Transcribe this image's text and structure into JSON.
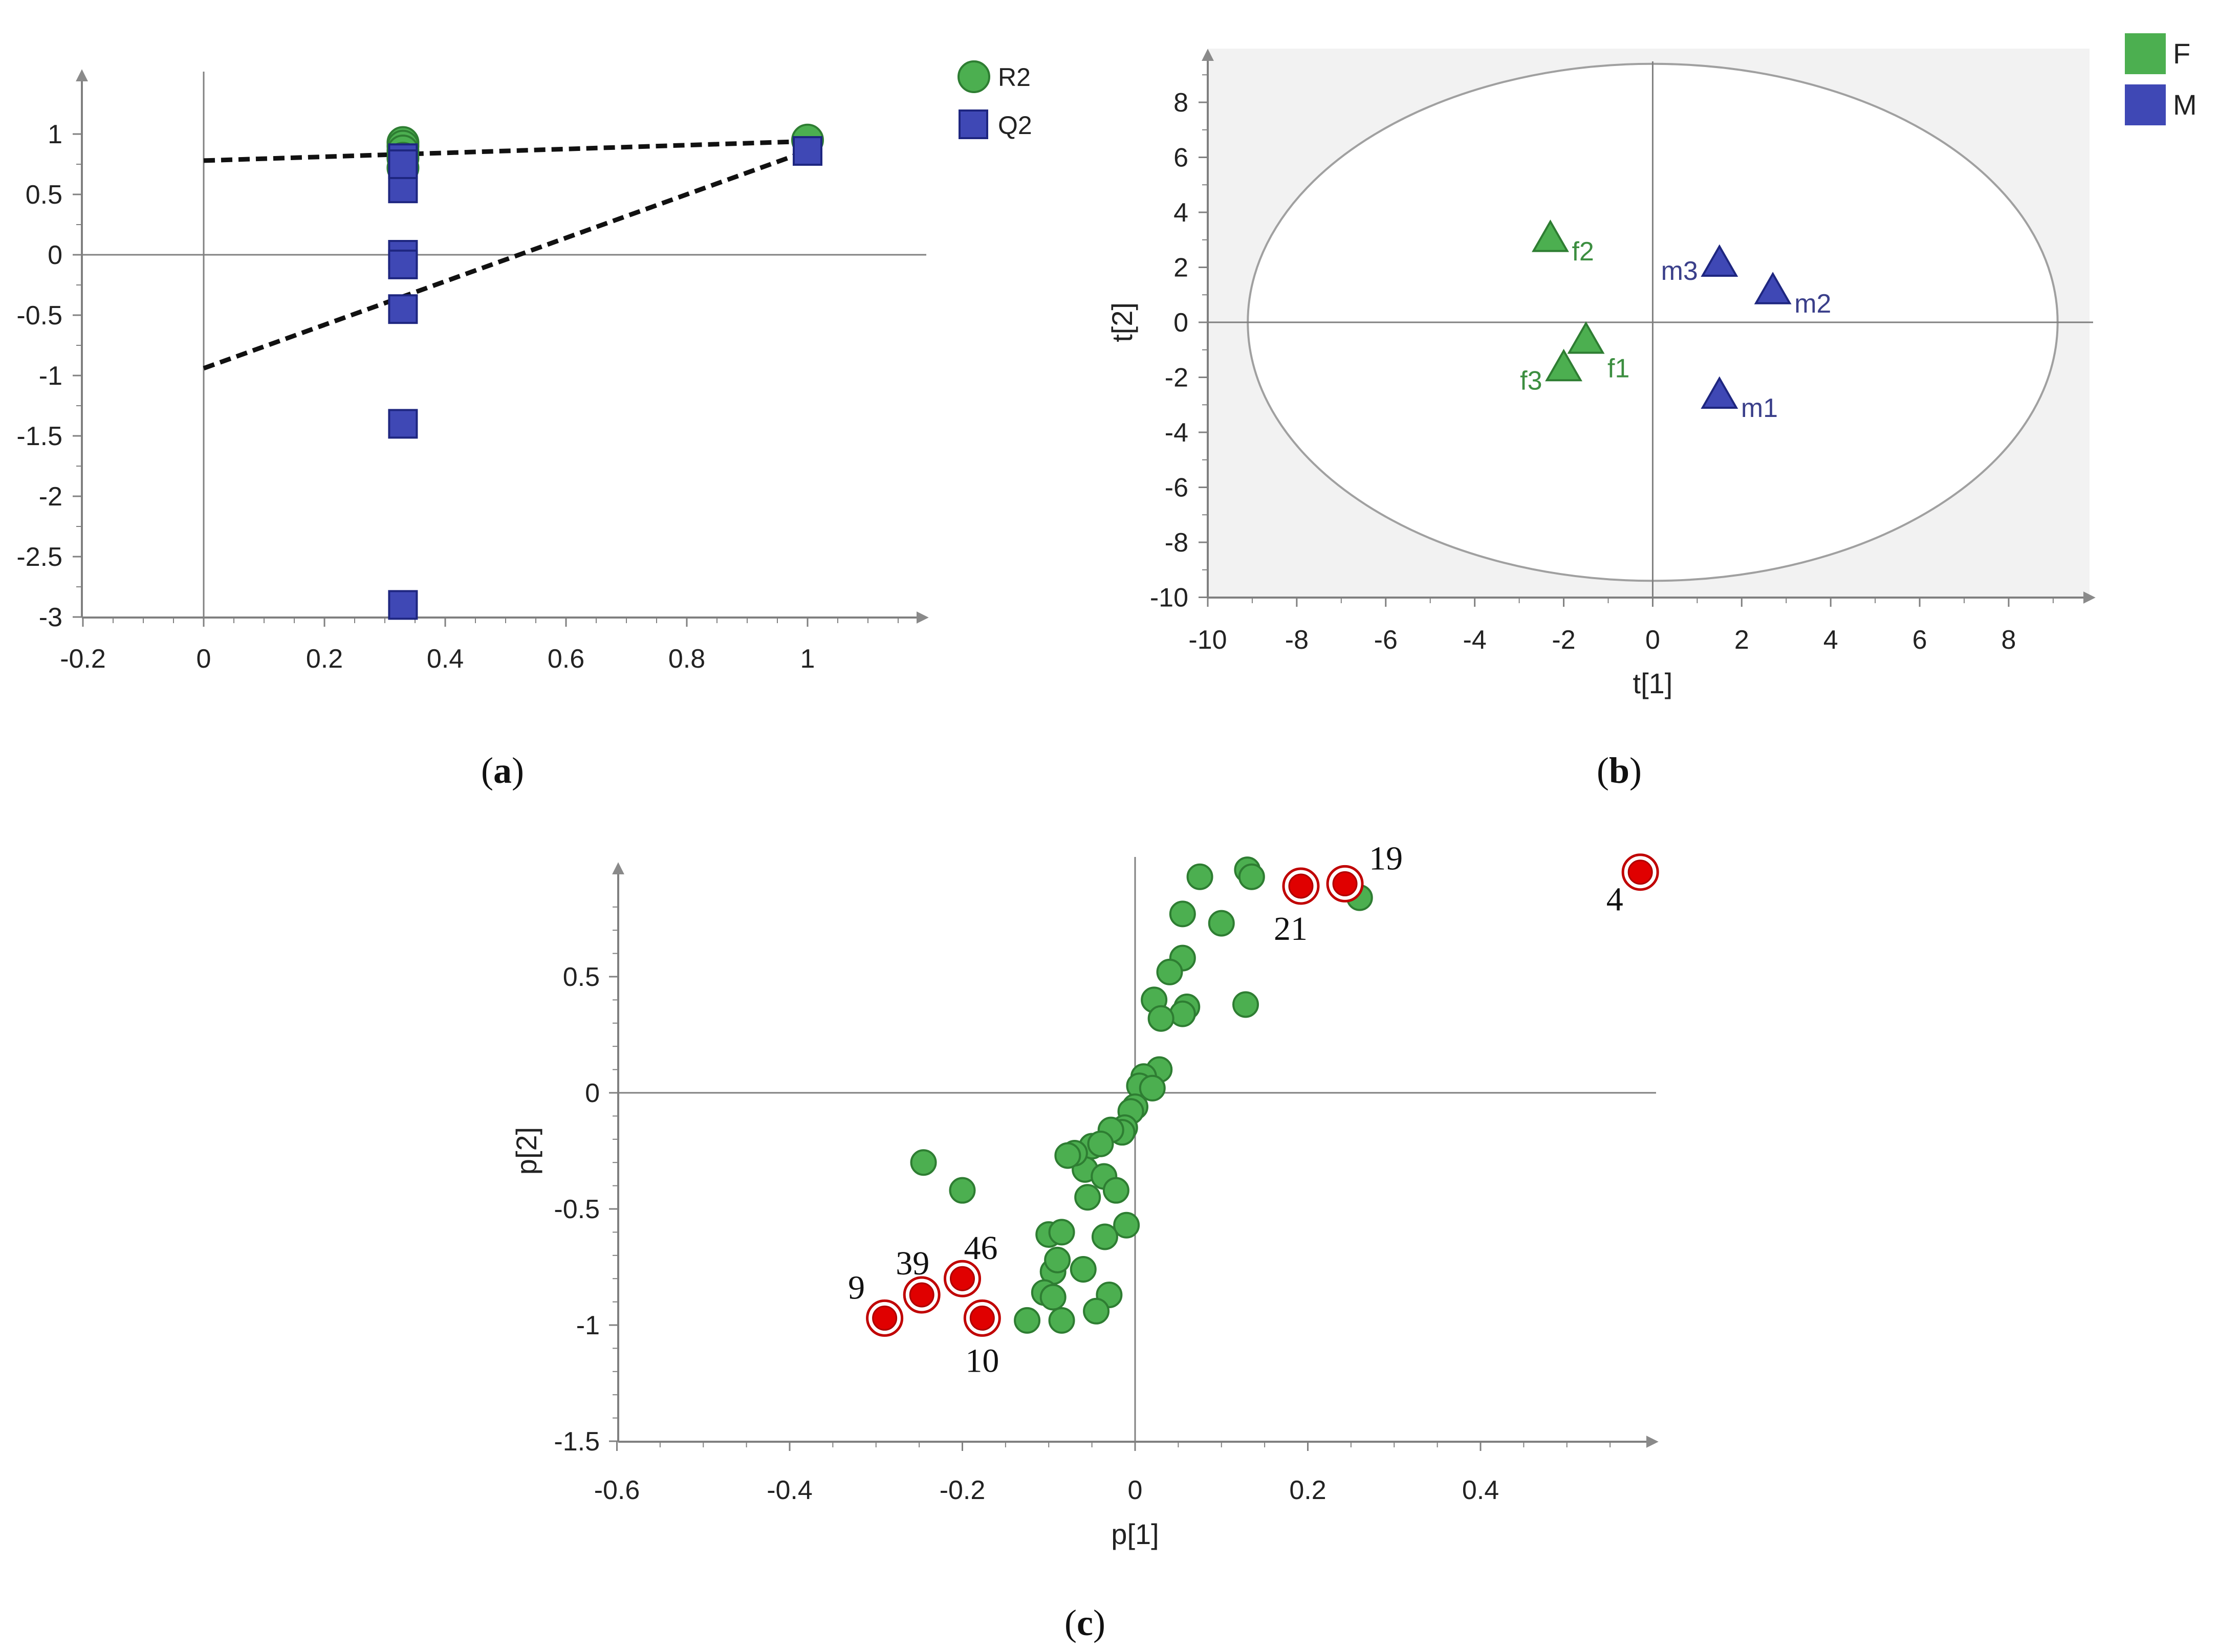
{
  "colors": {
    "green": "#4caf50",
    "green_stroke": "#2e7d32",
    "blue": "#3f48b5",
    "blue_stroke": "#1e2680",
    "red": "#e00000",
    "axis": "#808080",
    "plot_bg_b": "#f2f2f2"
  },
  "chart_data": [
    {
      "panel": "a",
      "caption_letter": "a",
      "type": "scatter",
      "title": "",
      "xlabel": "",
      "ylabel": "",
      "xlim": [
        -0.2,
        1.2
      ],
      "ylim": [
        -3.1,
        1.3
      ],
      "xticks": [
        -0.2,
        0,
        0.2,
        0.4,
        0.6,
        0.8,
        1
      ],
      "xtick_labels": [
        "-0.2",
        "0",
        "0.2",
        "0.4",
        "0.6",
        "0.8",
        "1"
      ],
      "yticks": [
        1,
        0.5,
        0,
        -0.5,
        -1,
        -1.5,
        -2,
        -2.5,
        -3
      ],
      "ytick_labels": [
        "1",
        "0.5",
        "0",
        "-0.5",
        "-1",
        "-1.5",
        "-2",
        "-2.5",
        "-3"
      ],
      "legend": [
        "R2",
        "Q2"
      ],
      "legend_position": "top-right",
      "series": [
        {
          "name": "R2",
          "marker": "circle",
          "x": [
            0.33,
            0.33,
            0.33,
            0.33,
            0.33,
            1.0
          ],
          "y": [
            0.93,
            0.9,
            0.86,
            0.8,
            0.72,
            0.95
          ]
        },
        {
          "name": "Q2",
          "marker": "square",
          "x": [
            0.33,
            0.33,
            0.33,
            0.33,
            0.33,
            0.33,
            0.33,
            0.33,
            1.0
          ],
          "y": [
            0.8,
            0.55,
            0.0,
            -0.08,
            -0.45,
            -1.4,
            -2.9,
            0.75,
            0.86
          ]
        }
      ],
      "regression_lines": [
        {
          "name": "R2 intercept line",
          "x": [
            0,
            1
          ],
          "y": [
            0.78,
            0.94
          ]
        },
        {
          "name": "Q2 intercept line",
          "x": [
            0,
            1
          ],
          "y": [
            -0.94,
            0.86
          ]
        }
      ]
    },
    {
      "panel": "b",
      "caption_letter": "b",
      "type": "scatter",
      "title": "",
      "xlabel": "t[1]",
      "ylabel": "t[2]",
      "xlim": [
        -10,
        10
      ],
      "ylim": [
        -10,
        10
      ],
      "xticks": [
        -10,
        -8,
        -6,
        -4,
        -2,
        0,
        2,
        4,
        6,
        8
      ],
      "xtick_labels": [
        "-10",
        "-8",
        "-6",
        "-4",
        "-2",
        "0",
        "2",
        "4",
        "6",
        "8"
      ],
      "yticks": [
        8,
        6,
        4,
        2,
        0,
        -2,
        -4,
        -6,
        -8,
        -10
      ],
      "ytick_labels": [
        "8",
        "6",
        "4",
        "2",
        "0",
        "-2",
        "-4",
        "-6",
        "-8",
        "-10"
      ],
      "legend": [
        "F",
        "M"
      ],
      "legend_position": "top-right",
      "hotelling_ellipse": {
        "cx": 0,
        "cy": 0,
        "rx": 9.1,
        "ry": 9.4
      },
      "series": [
        {
          "name": "F",
          "marker": "triangle",
          "points": [
            {
              "label": "f1",
              "x": -1.5,
              "y": -0.7
            },
            {
              "label": "f2",
              "x": -2.3,
              "y": 3.0
            },
            {
              "label": "f3",
              "x": -2.0,
              "y": -1.7
            }
          ]
        },
        {
          "name": "M",
          "marker": "triangle",
          "points": [
            {
              "label": "m1",
              "x": 1.5,
              "y": -2.7
            },
            {
              "label": "m2",
              "x": 2.7,
              "y": 1.1
            },
            {
              "label": "m3",
              "x": 1.5,
              "y": 2.1
            }
          ]
        }
      ]
    },
    {
      "panel": "c",
      "caption_letter": "c",
      "type": "scatter",
      "title": "",
      "xlabel": "p[1]",
      "ylabel": "p[2]",
      "xlim": [
        -0.6,
        0.6
      ],
      "ylim": [
        -1.5,
        0.95
      ],
      "xticks": [
        -0.6,
        -0.4,
        -0.2,
        0,
        0.2,
        0.4
      ],
      "xtick_labels": [
        "-0.6",
        "-0.4",
        "-0.2",
        "0",
        "0.2",
        "0.4"
      ],
      "yticks": [
        0.5,
        0,
        -0.5,
        -1,
        -1.5
      ],
      "ytick_labels": [
        "0.5",
        "0",
        "-0.5",
        "-1",
        "-1.5"
      ],
      "series": [
        {
          "name": "variables",
          "marker": "circle",
          "x": [
            0.075,
            0.13,
            0.135,
            0.26,
            0.055,
            0.1,
            0.055,
            0.04,
            0.128,
            0.022,
            0.06,
            0.055,
            0.03,
            0.028,
            0.01,
            0.005,
            0.02,
            0.0,
            -0.005,
            -0.012,
            -0.015,
            -0.028,
            -0.05,
            -0.04,
            -0.058,
            -0.036,
            -0.022,
            -0.07,
            -0.055,
            -0.01,
            -0.245,
            -0.2,
            -0.1,
            -0.085,
            -0.06,
            -0.035,
            -0.095,
            -0.09,
            -0.105,
            -0.095,
            -0.03,
            -0.125,
            -0.085,
            -0.045,
            -0.078
          ],
          "y": [
            0.93,
            0.96,
            0.93,
            0.84,
            0.77,
            0.73,
            0.58,
            0.52,
            0.38,
            0.4,
            0.37,
            0.34,
            0.32,
            0.1,
            0.07,
            0.03,
            0.02,
            -0.06,
            -0.08,
            -0.15,
            -0.17,
            -0.16,
            -0.23,
            -0.22,
            -0.33,
            -0.36,
            -0.42,
            -0.26,
            -0.45,
            -0.57,
            -0.3,
            -0.42,
            -0.61,
            -0.6,
            -0.76,
            -0.62,
            -0.77,
            -0.72,
            -0.86,
            -0.88,
            -0.87,
            -0.98,
            -0.98,
            -0.94,
            -0.27
          ]
        },
        {
          "name": "selected",
          "marker": "circle-ring",
          "points": [
            {
              "label": "4",
              "x": 0.585,
              "y": 0.95
            },
            {
              "label": "19",
              "x": 0.243,
              "y": 0.9
            },
            {
              "label": "21",
              "x": 0.192,
              "y": 0.89
            },
            {
              "label": "46",
              "x": -0.2,
              "y": -0.8
            },
            {
              "label": "39",
              "x": -0.247,
              "y": -0.87
            },
            {
              "label": "9",
              "x": -0.29,
              "y": -0.97
            },
            {
              "label": "10",
              "x": -0.177,
              "y": -0.97
            }
          ]
        }
      ]
    }
  ]
}
